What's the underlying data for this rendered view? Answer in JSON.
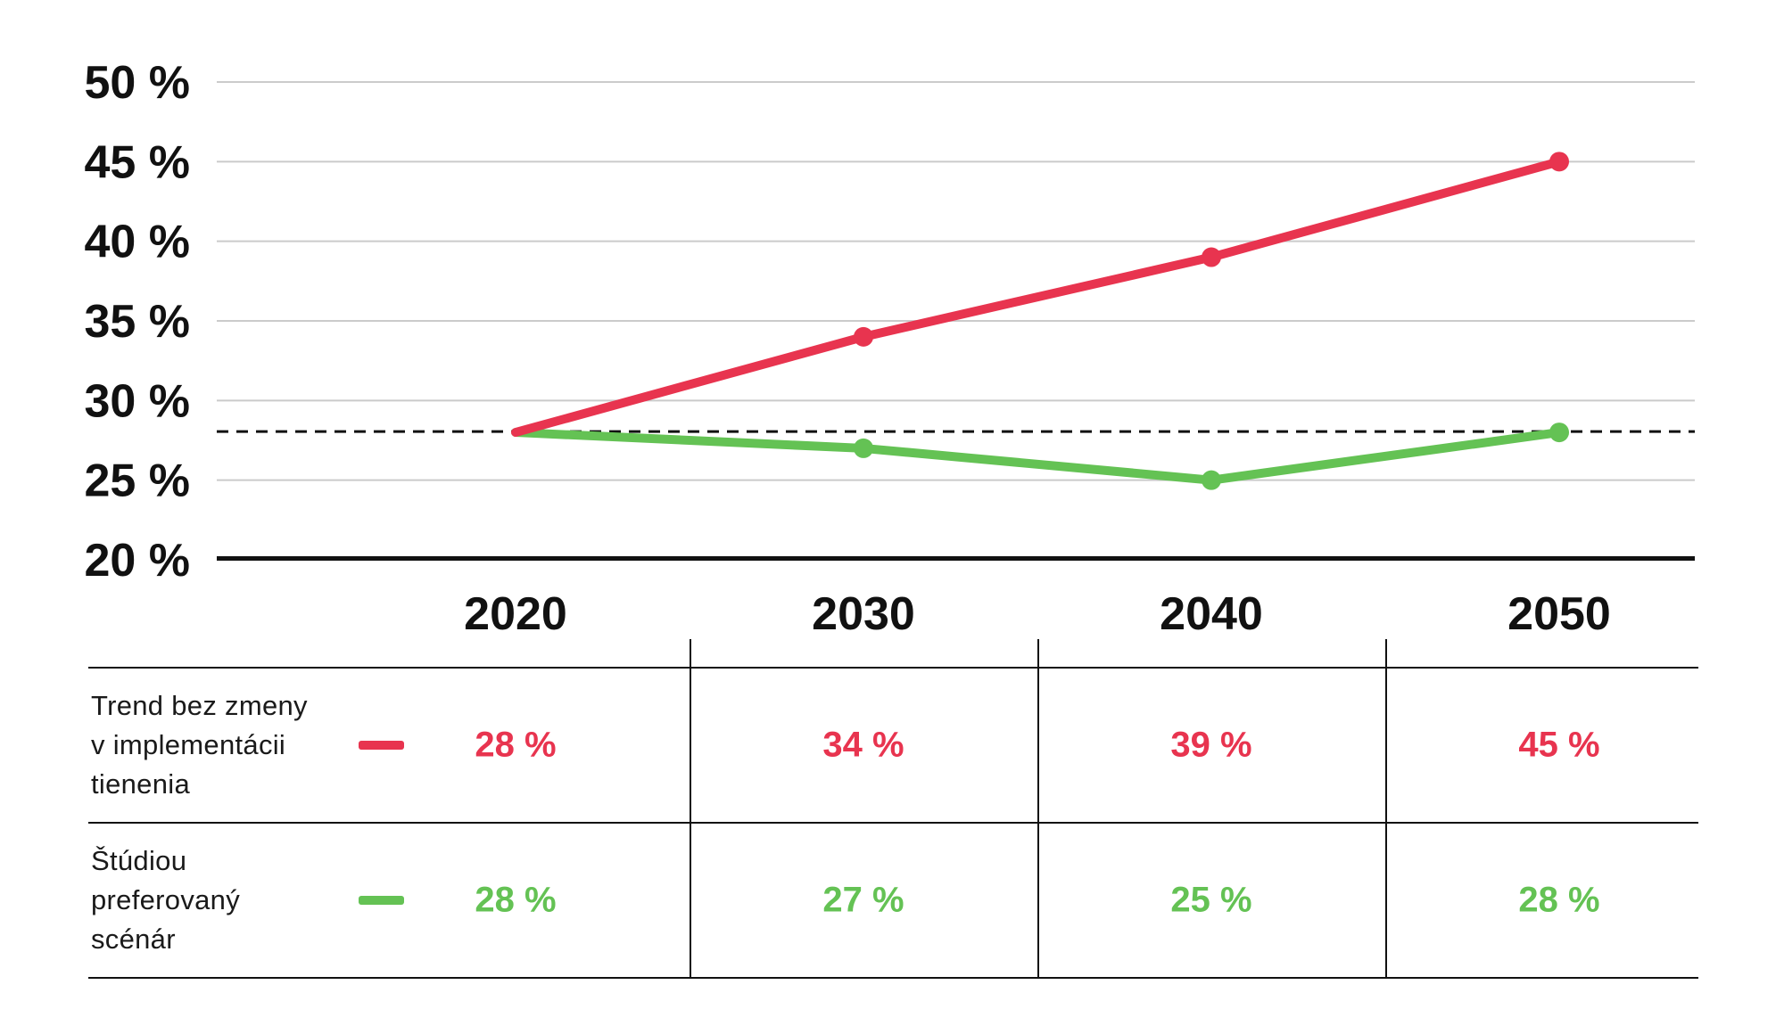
{
  "chart_data": {
    "type": "line",
    "x": [
      "2020",
      "2030",
      "2040",
      "2050"
    ],
    "series": [
      {
        "name": "Trend bez zmeny v implementácii tienenia",
        "values": [
          28,
          34,
          39,
          45
        ],
        "color": "#e8344f"
      },
      {
        "name": "Štúdiou preferovaný scénár",
        "values": [
          28,
          27,
          25,
          28
        ],
        "color": "#64c254"
      }
    ],
    "title": "",
    "xlabel": "",
    "ylabel": "",
    "ylim": [
      20,
      50
    ],
    "y_ticks": [
      50,
      45,
      40,
      35,
      30,
      25,
      20
    ],
    "y_tick_suffix": " %",
    "grid": true,
    "reference_line": {
      "value": 28,
      "style": "dashed",
      "color": "#111111"
    },
    "markers_skip_first_point": true,
    "legend_position": "table-below"
  },
  "table": {
    "columns": [
      "2020",
      "2030",
      "2040",
      "2050"
    ],
    "rows": [
      {
        "label": "Trend bez zmeny\nv implementácii\ntienenia",
        "swatch_color": "#e8344f",
        "values": [
          "28 %",
          "34 %",
          "39 %",
          "45 %"
        ]
      },
      {
        "label": "Štúdiou\npreferovaný\nscénár",
        "swatch_color": "#64c254",
        "values": [
          "28 %",
          "27 %",
          "25 %",
          "28 %"
        ]
      }
    ]
  },
  "colors": {
    "background": "#ffffff",
    "ink": "#111111",
    "gridline": "#cbcbcb",
    "red_series": "#e8344f",
    "green_series": "#64c254"
  }
}
